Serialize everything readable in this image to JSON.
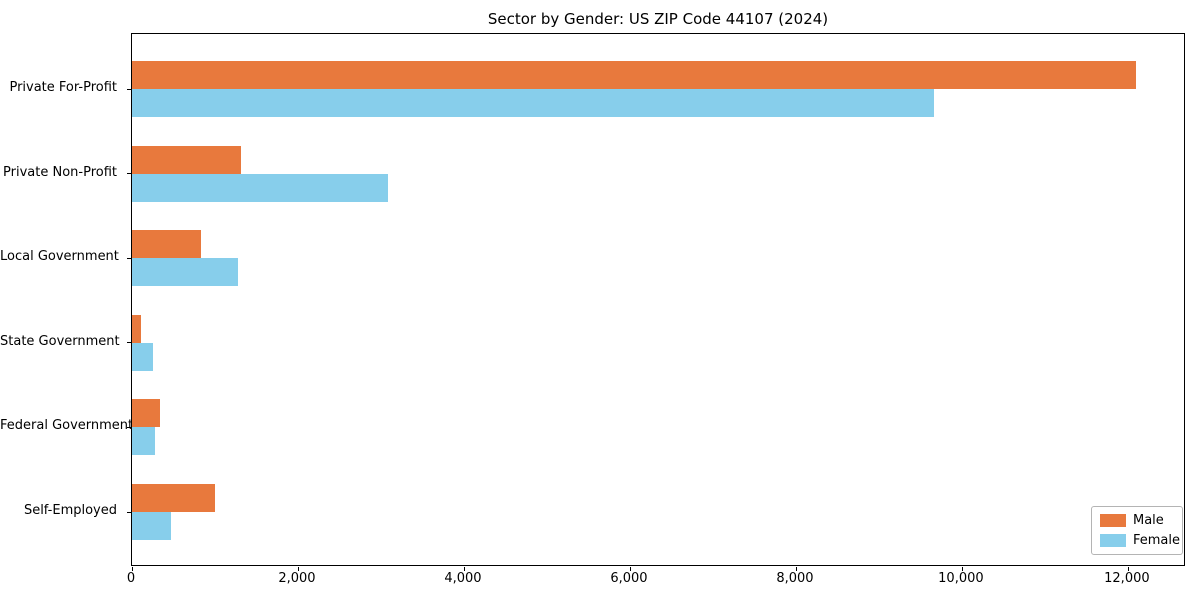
{
  "figure": {
    "title": "Sector by Gender: US ZIP Code 44107 (2024)"
  },
  "chart_data": {
    "type": "bar",
    "orientation": "horizontal",
    "title": "Sector by Gender: US ZIP Code 44107 (2024)",
    "categories": [
      "Private For-Profit",
      "Private Non-Profit",
      "Local Government",
      "State Government",
      "Federal Government",
      "Self-Employed"
    ],
    "series": [
      {
        "name": "Male",
        "color": "#E8793D",
        "values": [
          12100,
          1310,
          830,
          110,
          340,
          1000
        ]
      },
      {
        "name": "Female",
        "color": "#87CEEB",
        "values": [
          9660,
          3080,
          1280,
          250,
          280,
          470
        ]
      }
    ],
    "xlabel": "",
    "ylabel": "",
    "xlim": [
      0,
      12700
    ],
    "xticks": [
      0,
      2000,
      4000,
      6000,
      8000,
      10000,
      12000
    ],
    "xtick_labels": [
      "0",
      "2,000",
      "4,000",
      "6,000",
      "8,000",
      "10,000",
      "12,000"
    ],
    "grid": false,
    "legend": {
      "position": "lower right"
    },
    "colors": {
      "male": "#E8793D",
      "female": "#87CEEB",
      "spine": "#000000",
      "text": "#000000"
    }
  }
}
